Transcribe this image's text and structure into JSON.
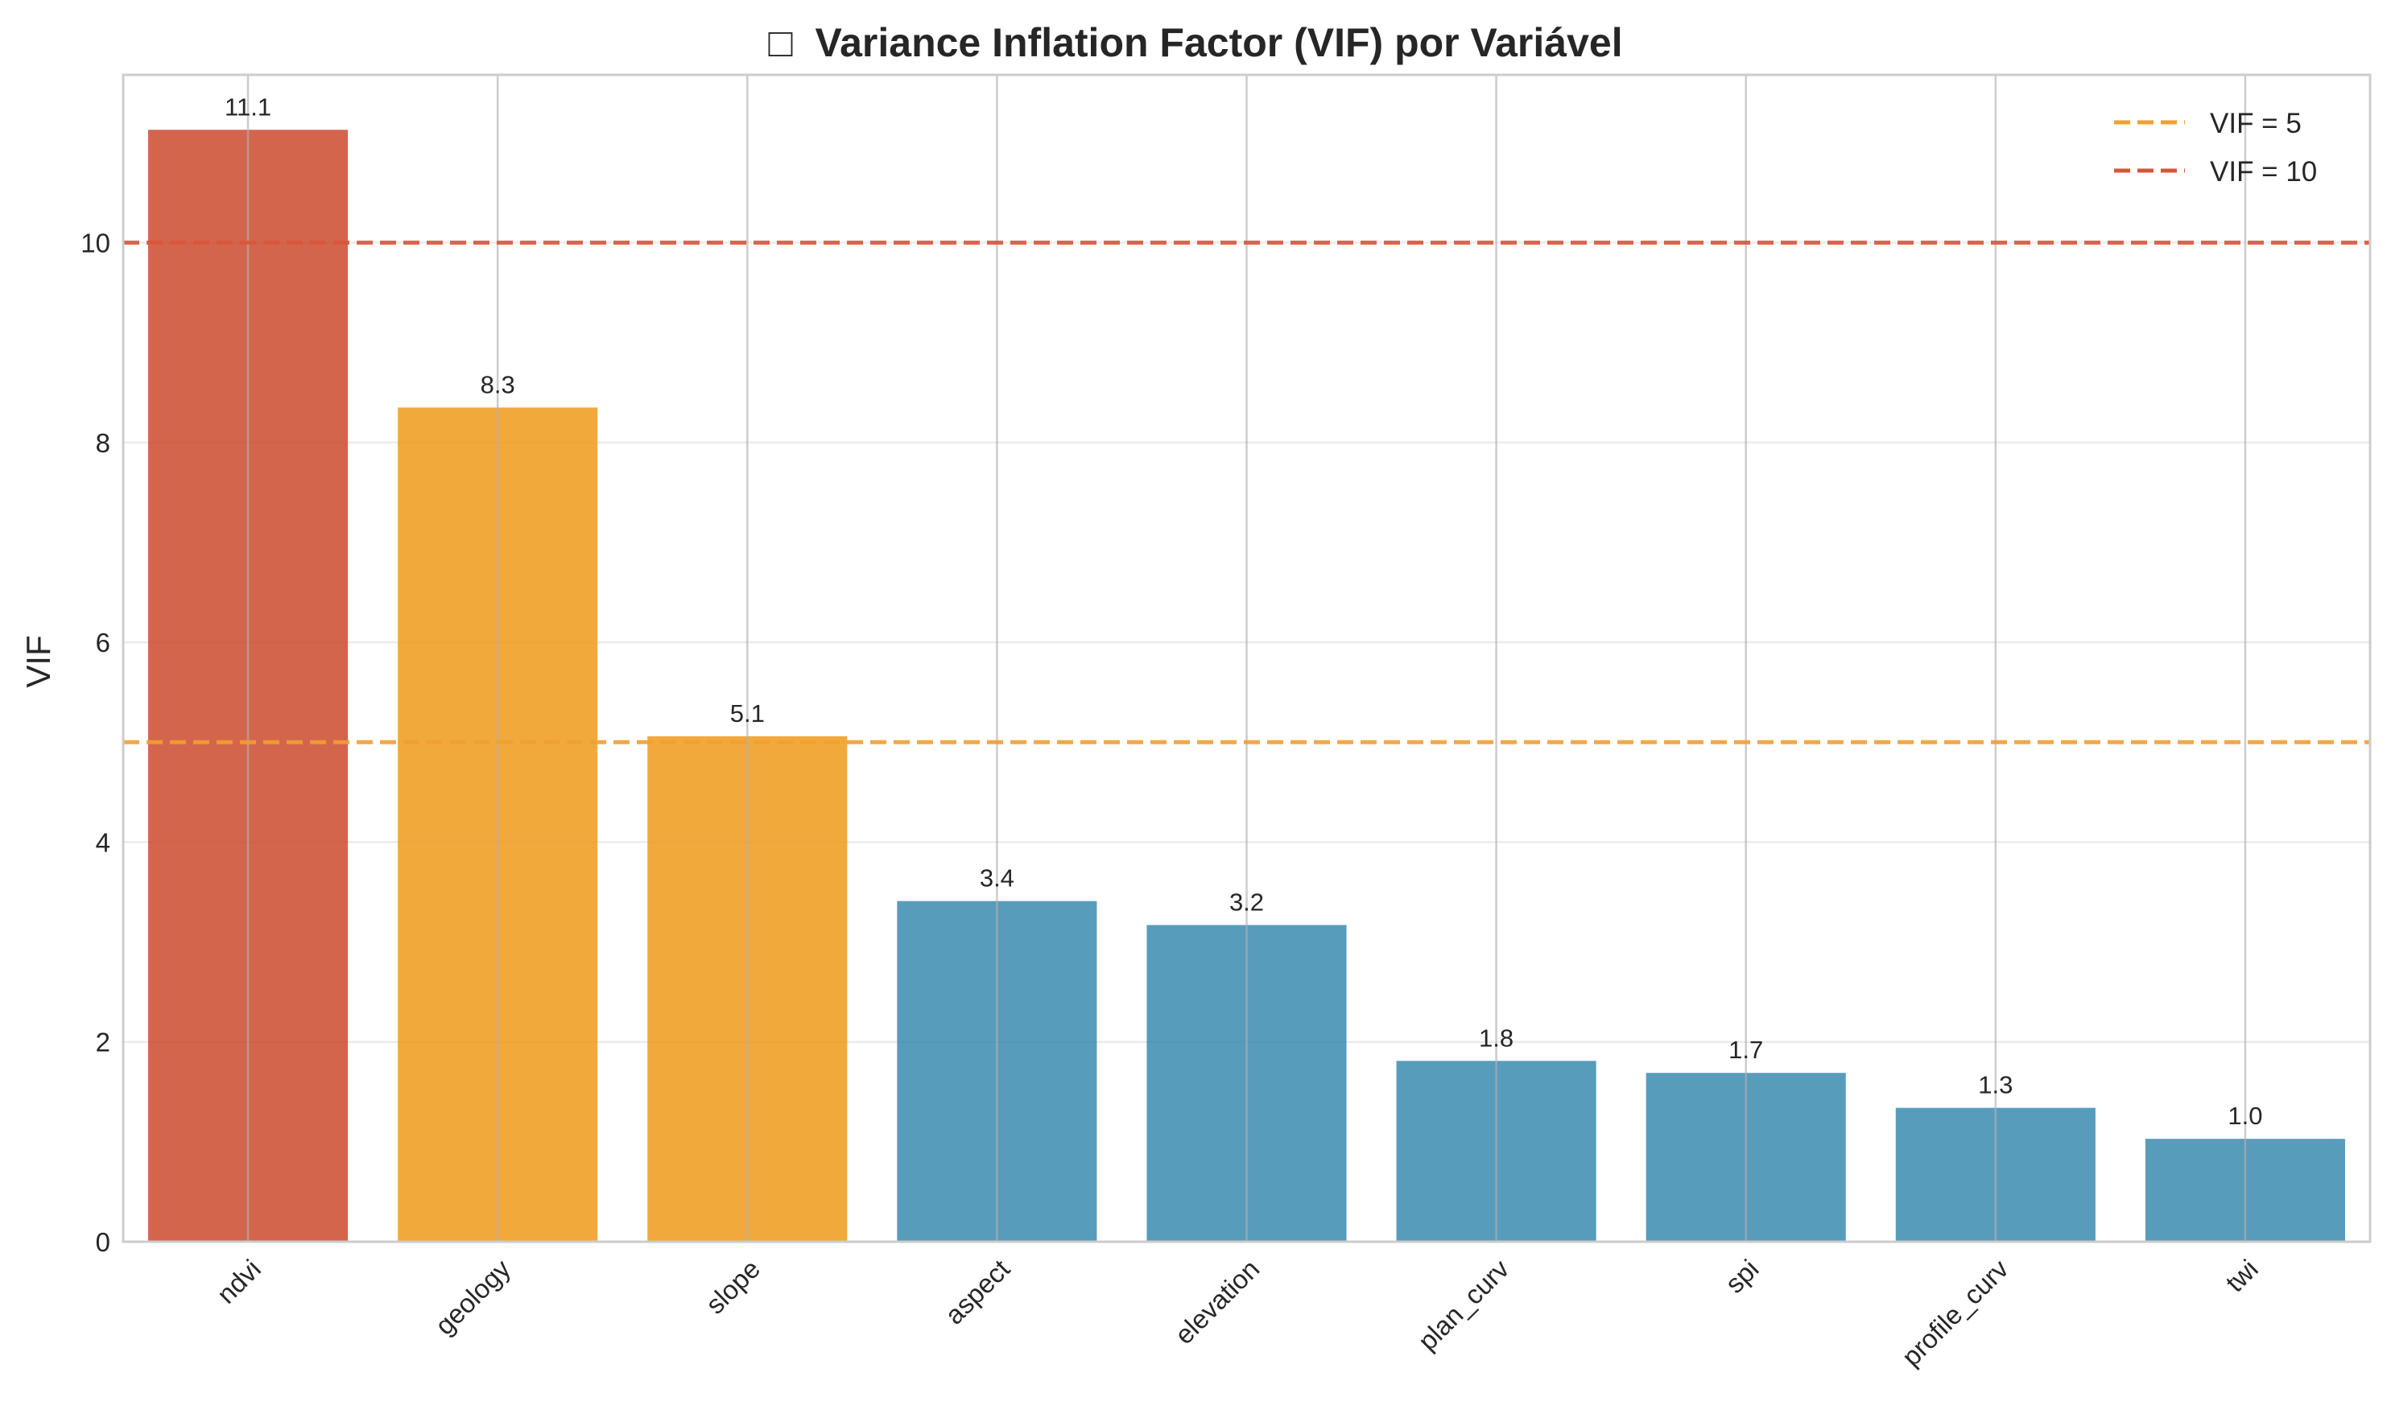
{
  "chart_data": {
    "type": "bar",
    "title": "Variance Inflation Factor (VIF) por Variável",
    "title_icon": "□",
    "xlabel": "",
    "ylabel": "VIF",
    "categories": [
      "ndvi",
      "geology",
      "slope",
      "aspect",
      "elevation",
      "plan_curv",
      "spi",
      "profile_curv",
      "twi"
    ],
    "values": [
      11.13,
      8.35,
      5.06,
      3.41,
      3.17,
      1.81,
      1.69,
      1.34,
      1.03
    ],
    "value_labels": [
      "11.1",
      "8.3",
      "5.1",
      "3.4",
      "3.2",
      "1.8",
      "1.7",
      "1.3",
      "1.0"
    ],
    "bar_colors": [
      "#cc4a2e",
      "#f09a1a",
      "#f09a1a",
      "#3b8bb0",
      "#3b8bb0",
      "#3b8bb0",
      "#3b8bb0",
      "#3b8bb0",
      "#3b8bb0"
    ],
    "yticks": [
      0,
      2,
      4,
      6,
      8,
      10
    ],
    "ytick_labels": [
      "0",
      "2",
      "4",
      "6",
      "8",
      "10"
    ],
    "ylim": [
      0,
      11.68
    ],
    "grid": true,
    "reference_lines": [
      {
        "label": "VIF = 5",
        "value": 5,
        "color": "#f0a030"
      },
      {
        "label": "VIF = 10",
        "value": 10,
        "color": "#d9553a"
      }
    ],
    "legend": "top-right"
  }
}
